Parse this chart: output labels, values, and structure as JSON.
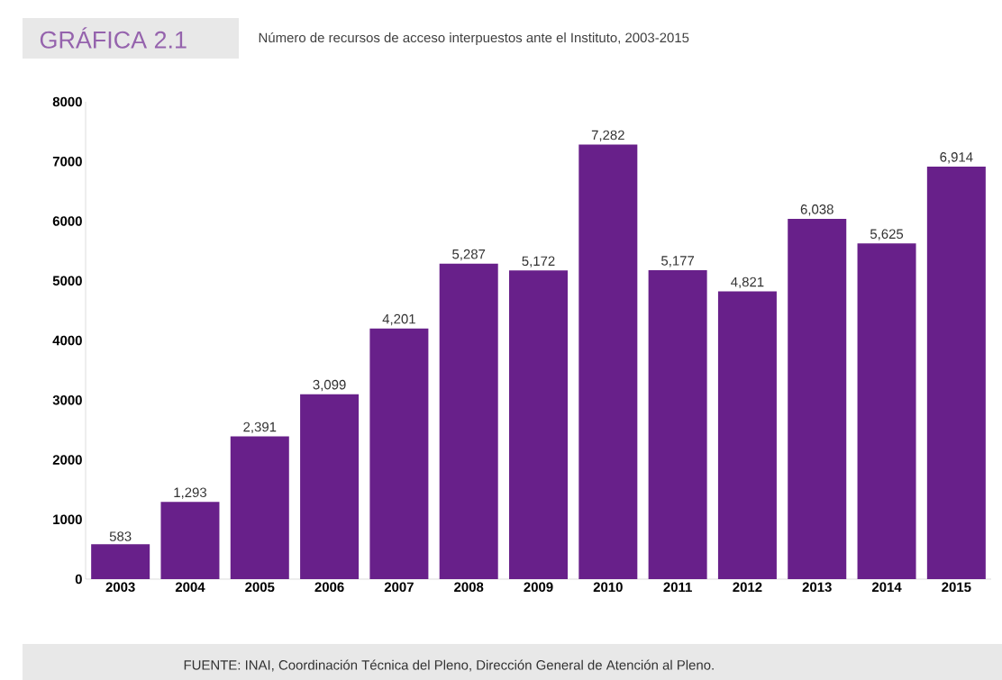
{
  "chart_data": {
    "type": "bar",
    "title": "GRÁFICA 2.1",
    "subtitle": "Número de recursos de acceso interpuestos ante el Instituto, 2003-2015",
    "categories": [
      "2003",
      "2004",
      "2005",
      "2006",
      "2007",
      "2008",
      "2009",
      "2010",
      "2011",
      "2012",
      "2013",
      "2014",
      "2015"
    ],
    "values": [
      583,
      1293,
      2391,
      3099,
      4201,
      5287,
      5172,
      7282,
      5177,
      4821,
      6038,
      5625,
      6914
    ],
    "value_labels": [
      "583",
      "1,293",
      "2,391",
      "3,099",
      "4,201",
      "5,287",
      "5,172",
      "7,282",
      "5,177",
      "4,821",
      "6,038",
      "5,625",
      "6,914"
    ],
    "color": "#68208a",
    "ylim": [
      0,
      8000
    ],
    "yticks": [
      0,
      1000,
      2000,
      3000,
      4000,
      5000,
      6000,
      7000,
      8000
    ],
    "annotations": [
      "FUENTE: INAI, Coordinación Técnica del Pleno, Dirección General de Atención al Pleno."
    ]
  }
}
